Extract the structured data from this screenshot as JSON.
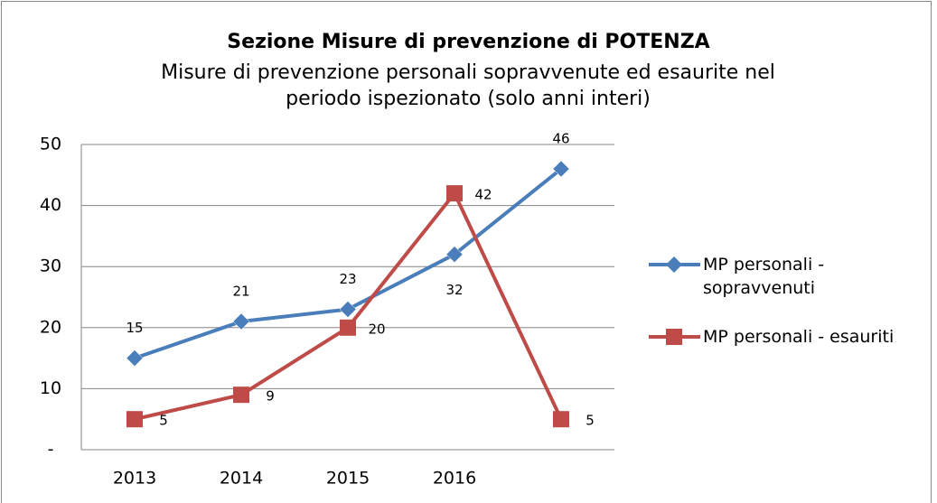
{
  "chart_data": {
    "type": "line",
    "title": "Sezione Misure di prevenzione di POTENZA",
    "subtitle": "Misure di prevenzione personali sopravvenute ed esaurite nel periodo ispezionato (solo anni interi)",
    "categories": [
      "2013",
      "2014",
      "2015",
      "2016",
      null
    ],
    "series": [
      {
        "name": "MP personali - sopravvenuti",
        "color": "#4a7ebb",
        "marker": "diamond",
        "values": [
          15,
          21,
          23,
          32,
          46
        ]
      },
      {
        "name": "MP personali - esauriti",
        "color": "#be4b48",
        "marker": "square",
        "values": [
          5,
          9,
          20,
          42,
          5
        ]
      }
    ],
    "ylim": [
      0,
      50
    ],
    "yticks": [
      {
        "value": 0,
        "label": "-"
      },
      10,
      20,
      30,
      40,
      50
    ],
    "grid": true,
    "legend": "right"
  }
}
